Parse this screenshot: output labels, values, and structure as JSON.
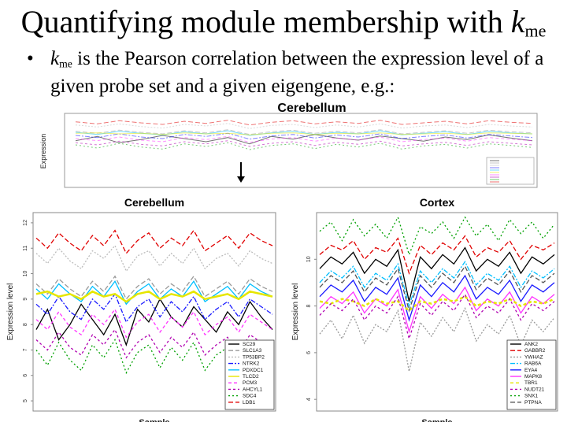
{
  "title": {
    "text": "Quantifying module membership with ",
    "k": "k",
    "sub": "me"
  },
  "bullet": {
    "marker": "•",
    "k": "k",
    "sub": "me",
    "text": " is the Pearson correlation between the expression level of a given probe set and a given eigengene, e.g.:"
  },
  "top_panel": {
    "title": "Cerebellum",
    "ylabel": "Expression"
  },
  "chart_data": [
    {
      "type": "line",
      "title": "Cerebellum",
      "xlabel": "Sample",
      "ylabel": "Expression level",
      "ylim": [
        4.6,
        12.4
      ],
      "yticks": [
        "5",
        "6",
        "7",
        "8",
        "9",
        "10",
        "11",
        "12"
      ],
      "legend": "bottom-right",
      "series": [
        {
          "name": "SC29",
          "color": "#000000",
          "values": [
            7.8,
            8.6,
            7.4,
            8.0,
            8.8,
            8.2,
            7.6,
            8.4,
            7.2,
            8.6,
            8.1,
            9.0,
            8.3,
            7.9,
            8.7,
            8.2,
            7.7,
            8.5,
            8.0,
            8.9,
            8.3,
            7.8
          ]
        },
        {
          "name": "SLC1A3",
          "color": "#9a9a9a",
          "values": [
            9.6,
            9.2,
            9.8,
            9.4,
            9.1,
            9.7,
            9.3,
            9.9,
            9.0,
            9.5,
            9.8,
            9.2,
            9.6,
            9.3,
            9.9,
            9.1,
            9.4,
            9.7,
            9.2,
            9.8,
            9.5,
            9.3
          ]
        },
        {
          "name": "TP53BP2",
          "color": "#bbbbbb",
          "values": [
            10.8,
            10.4,
            11.0,
            10.5,
            10.2,
            10.9,
            10.6,
            11.1,
            10.1,
            10.7,
            10.9,
            10.3,
            10.8,
            10.4,
            11.0,
            10.2,
            10.6,
            10.8,
            10.3,
            10.9,
            10.6,
            10.4
          ]
        },
        {
          "name": "NTRK2",
          "color": "#1a1aff",
          "values": [
            8.8,
            8.4,
            9.1,
            8.5,
            8.2,
            9.0,
            8.6,
            9.2,
            8.1,
            8.7,
            9.0,
            8.3,
            8.9,
            8.5,
            9.1,
            8.2,
            8.6,
            8.9,
            8.3,
            9.0,
            8.7,
            8.4
          ]
        },
        {
          "name": "PDXDC1",
          "color": "#00bfff",
          "values": [
            9.4,
            9.0,
            9.6,
            9.2,
            8.9,
            9.5,
            9.1,
            9.7,
            8.8,
            9.3,
            9.6,
            9.0,
            9.4,
            9.1,
            9.7,
            8.9,
            9.2,
            9.5,
            9.0,
            9.6,
            9.3,
            9.1
          ]
        },
        {
          "name": "TLCD2",
          "color": "#e6e600",
          "values": [
            9.2,
            9.3,
            9.1,
            9.2,
            9.0,
            9.3,
            9.1,
            9.2,
            8.9,
            9.2,
            9.3,
            9.0,
            9.2,
            9.1,
            9.3,
            9.0,
            9.1,
            9.2,
            9.0,
            9.3,
            9.2,
            9.1
          ]
        },
        {
          "name": "PCM3",
          "color": "#ff33ff",
          "values": [
            8.2,
            7.8,
            8.5,
            7.9,
            7.6,
            8.4,
            8.0,
            8.6,
            7.5,
            8.1,
            8.4,
            7.7,
            8.3,
            7.9,
            8.5,
            7.6,
            8.0,
            8.3,
            7.7,
            8.4,
            8.1,
            7.8
          ]
        },
        {
          "name": "AHCYL1",
          "color": "#b000b0",
          "values": [
            7.4,
            7.0,
            7.7,
            7.1,
            6.8,
            7.6,
            7.2,
            7.8,
            6.7,
            7.3,
            7.6,
            6.9,
            7.5,
            7.1,
            7.7,
            6.8,
            7.2,
            7.5,
            6.9,
            7.6,
            7.3,
            7.0
          ]
        },
        {
          "name": "SDC4",
          "color": "#00a000",
          "values": [
            7.0,
            6.4,
            7.3,
            6.6,
            6.2,
            7.2,
            6.7,
            7.4,
            6.1,
            6.9,
            7.2,
            6.3,
            7.1,
            6.6,
            7.3,
            6.2,
            6.8,
            7.1,
            6.4,
            7.2,
            6.9,
            6.5
          ]
        },
        {
          "name": "LDB1",
          "color": "#e00000",
          "values": [
            11.4,
            11.0,
            11.6,
            11.2,
            10.9,
            11.5,
            11.1,
            11.7,
            10.8,
            11.3,
            11.6,
            11.0,
            11.4,
            11.1,
            11.7,
            10.9,
            11.2,
            11.5,
            11.0,
            11.6,
            11.3,
            11.1
          ]
        }
      ]
    },
    {
      "type": "line",
      "title": "Cortex",
      "xlabel": "Sample",
      "ylabel": "Expression level",
      "ylim": [
        3.5,
        12.0
      ],
      "yticks": [
        "4",
        "6",
        "8",
        "10"
      ],
      "legend": "bottom-right",
      "series": [
        {
          "name": "ANK2",
          "color": "#000000",
          "values": [
            9.6,
            10.1,
            9.8,
            10.3,
            9.4,
            10.0,
            9.7,
            10.4,
            8.2,
            10.1,
            9.6,
            10.2,
            9.8,
            10.5,
            9.5,
            10.0,
            9.7,
            10.3,
            9.4,
            10.1,
            9.8,
            10.2
          ]
        },
        {
          "name": "GABBR2",
          "color": "#e00000",
          "values": [
            10.2,
            10.6,
            10.4,
            10.8,
            10.0,
            10.5,
            10.3,
            10.9,
            9.4,
            10.6,
            10.2,
            10.7,
            10.4,
            11.0,
            10.1,
            10.5,
            10.3,
            10.8,
            10.0,
            10.6,
            10.4,
            10.7
          ]
        },
        {
          "name": "YWHAZ",
          "color": "#9a9a9a",
          "values": [
            6.8,
            7.4,
            6.6,
            7.6,
            6.4,
            7.2,
            6.9,
            7.8,
            5.2,
            7.3,
            6.7,
            7.5,
            6.9,
            7.9,
            6.5,
            7.2,
            6.8,
            7.6,
            6.3,
            7.4,
            6.9,
            7.5
          ]
        },
        {
          "name": "RAB6A",
          "color": "#00bfff",
          "values": [
            9.0,
            9.5,
            9.2,
            9.7,
            8.8,
            9.4,
            9.1,
            9.8,
            8.0,
            9.5,
            9.0,
            9.6,
            9.2,
            9.9,
            8.9,
            9.4,
            9.1,
            9.7,
            8.8,
            9.5,
            9.2,
            9.6
          ]
        },
        {
          "name": "EYA4",
          "color": "#1a1aff",
          "values": [
            8.4,
            8.9,
            8.6,
            9.1,
            8.2,
            8.8,
            8.5,
            9.2,
            7.4,
            8.9,
            8.4,
            9.0,
            8.6,
            9.3,
            8.3,
            8.8,
            8.5,
            9.1,
            8.2,
            8.9,
            8.6,
            9.0
          ]
        },
        {
          "name": "MAPK8",
          "color": "#ff33ff",
          "values": [
            7.9,
            8.4,
            8.1,
            8.6,
            7.7,
            8.3,
            8.0,
            8.7,
            6.9,
            8.4,
            7.9,
            8.5,
            8.1,
            8.8,
            7.8,
            8.3,
            8.0,
            8.6,
            7.7,
            8.4,
            8.1,
            8.5
          ]
        },
        {
          "name": "TBR1",
          "color": "#e6e600",
          "values": [
            8.2,
            8.1,
            8.3,
            8.2,
            8.0,
            8.3,
            8.1,
            8.2,
            7.8,
            8.2,
            8.1,
            8.3,
            8.2,
            8.4,
            8.0,
            8.2,
            8.1,
            8.3,
            8.0,
            8.2,
            8.1,
            8.3
          ]
        },
        {
          "name": "NUDT21",
          "color": "#b000b0",
          "values": [
            7.6,
            8.1,
            7.8,
            8.3,
            7.4,
            8.0,
            7.7,
            8.4,
            6.6,
            8.1,
            7.6,
            8.2,
            7.8,
            8.5,
            7.5,
            8.0,
            7.7,
            8.3,
            7.4,
            8.1,
            7.8,
            8.2
          ]
        },
        {
          "name": "SNX1",
          "color": "#00a000",
          "values": [
            11.2,
            11.6,
            10.8,
            11.7,
            11.0,
            11.5,
            10.9,
            11.8,
            10.2,
            11.4,
            11.1,
            11.6,
            10.9,
            11.8,
            11.0,
            11.5,
            10.8,
            11.7,
            11.1,
            11.6,
            10.9,
            11.5
          ]
        },
        {
          "name": "PTPNA",
          "color": "#555555",
          "values": [
            8.8,
            9.3,
            9.0,
            9.5,
            8.6,
            9.2,
            8.9,
            9.6,
            7.8,
            9.3,
            8.8,
            9.4,
            9.0,
            9.7,
            8.7,
            9.2,
            8.9,
            9.5,
            8.6,
            9.3,
            9.0,
            9.4
          ]
        }
      ]
    }
  ]
}
